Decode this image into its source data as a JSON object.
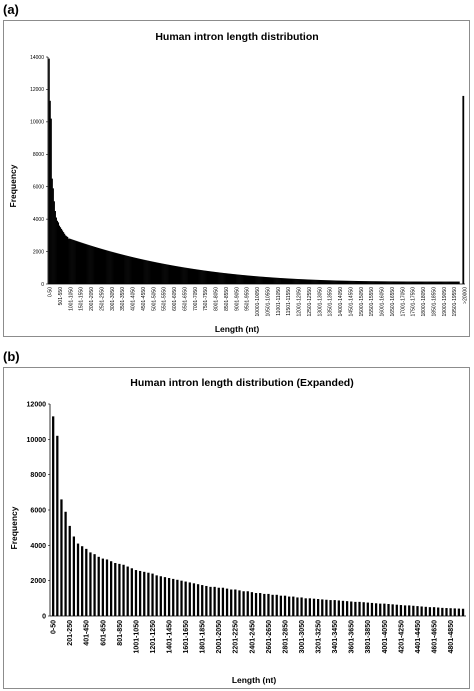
{
  "panels": {
    "a_label": "(a)",
    "b_label": "(b)"
  },
  "chart_data": [
    {
      "type": "bar",
      "title": "Human intron length distribution",
      "xlabel": "Length (nt)",
      "ylabel": "Frequency",
      "ylim": [
        0,
        14000
      ],
      "yticks": [
        0,
        2000,
        4000,
        6000,
        8000,
        10000,
        12000,
        14000
      ],
      "xtick_labels": [
        "0-50",
        "501-550",
        "1001-1050",
        "1501-1550",
        "2001-2050",
        "2501-2550",
        "3001-3050",
        "3501-3550",
        "4001-4050",
        "4501-4550",
        "5001-5050",
        "5501-5550",
        "6001-6050",
        "6501-6550",
        "7001-7050",
        "7501-7550",
        "8001-8050",
        "8501-8550",
        "9001-9050",
        "9501-9550",
        "10001-10050",
        "10501-10550",
        "11001-11050",
        "11501-11550",
        "12001-12050",
        "12501-12550",
        "13001-13050",
        "13501-13550",
        "14001-14050",
        "14501-14550",
        "15001-15050",
        "15501-15550",
        "16001-16050",
        "16501-16550",
        "17001-17050",
        "17501-17550",
        "18001-18050",
        "18501-18550",
        "19001-19050",
        "19501-19550",
        ">20000"
      ],
      "bin_count": 400,
      "values_first_bins": [
        13900,
        11300,
        10200,
        6500,
        5900,
        5100,
        4500,
        4100,
        3900,
        3800,
        3600,
        3500,
        3400,
        3300,
        3200,
        3100,
        3000,
        2950,
        2900,
        2800
      ],
      "tail_value_at_20000": 150,
      "overflow_bin": {
        "label": ">20000",
        "value": 11600
      },
      "grid": false,
      "legend": "none"
    },
    {
      "type": "bar",
      "title": "Human intron length distribution (Expanded)",
      "xlabel": "Length (nt)",
      "ylabel": "Frequency",
      "ylim": [
        0,
        12000
      ],
      "yticks": [
        0,
        2000,
        4000,
        6000,
        8000,
        10000,
        12000
      ],
      "xtick_labels": [
        "0-50",
        "201-250",
        "401-450",
        "601-650",
        "801-850",
        "1001-1050",
        "1201-1250",
        "1401-1450",
        "1601-1650",
        "1801-1850",
        "2001-2050",
        "2201-2250",
        "2401-2450",
        "2601-2650",
        "2801-2850",
        "3001-3050",
        "3201-3250",
        "3401-3450",
        "3601-3650",
        "3801-3850",
        "4001-4050",
        "4201-4250",
        "4401-4450",
        "4601-4650",
        "4801-4850"
      ],
      "values": [
        11300,
        10200,
        6600,
        5900,
        5100,
        4500,
        4100,
        3950,
        3800,
        3600,
        3500,
        3350,
        3250,
        3200,
        3100,
        3000,
        2950,
        2900,
        2800,
        2700,
        2600,
        2550,
        2500,
        2450,
        2400,
        2300,
        2250,
        2200,
        2150,
        2100,
        2050,
        2000,
        1950,
        1900,
        1850,
        1800,
        1750,
        1700,
        1650,
        1650,
        1600,
        1600,
        1550,
        1500,
        1500,
        1450,
        1400,
        1400,
        1350,
        1300,
        1300,
        1250,
        1250,
        1200,
        1200,
        1150,
        1150,
        1100,
        1100,
        1050,
        1050,
        1000,
        1000,
        980,
        960,
        940,
        920,
        900,
        900,
        880,
        860,
        840,
        820,
        800,
        800,
        780,
        760,
        740,
        720,
        700,
        700,
        680,
        660,
        640,
        620,
        600,
        600,
        580,
        560,
        540,
        520,
        500,
        500,
        480,
        460,
        450,
        440,
        430,
        420,
        410
      ],
      "grid": false,
      "legend": "none"
    }
  ]
}
